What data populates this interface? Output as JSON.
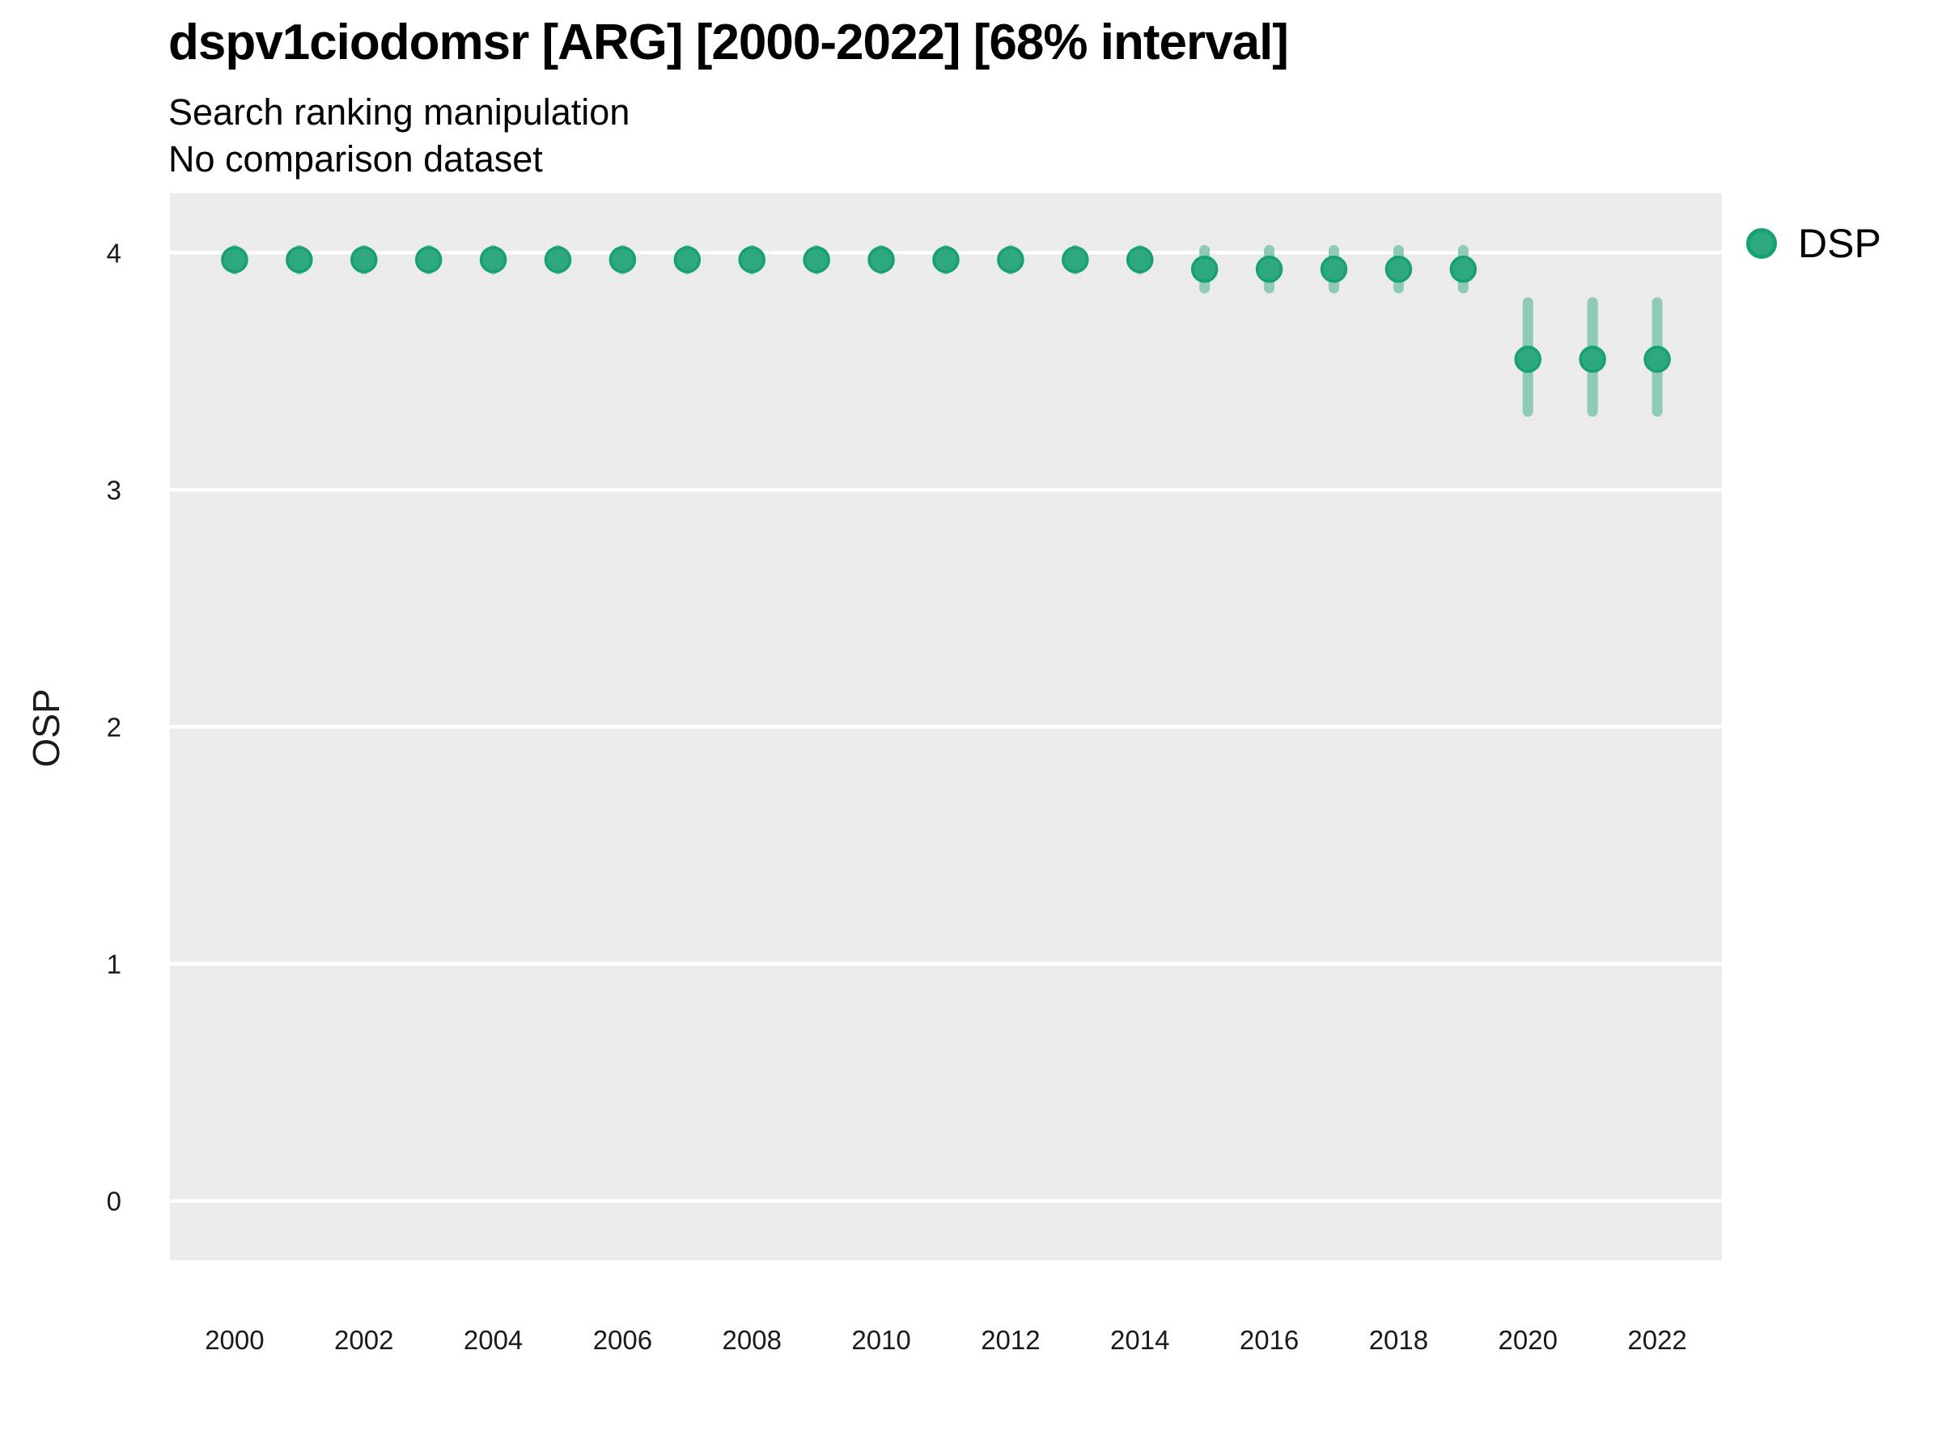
{
  "header": {
    "title": "dspv1ciodomsr [ARG] [2000-2022] [68% interval]",
    "subtitle": "Search ranking manipulation",
    "note": "No comparison dataset"
  },
  "legend": {
    "label": "DSP"
  },
  "colors": {
    "panel": "#ebebeb",
    "grid": "#ffffff",
    "point": "#2ea881",
    "point_stroke": "#17a077",
    "interval": "#8fcbb4",
    "tick_text": "#1a1a1a"
  },
  "chart_data": {
    "type": "scatter",
    "title": "dspv1ciodomsr [ARG] [2000-2022] [68% interval]",
    "subtitle": "Search ranking manipulation",
    "note": "No comparison dataset",
    "xlabel": "",
    "ylabel": "OSP",
    "legend_entries": [
      "DSP"
    ],
    "legend_position": "right",
    "grid": "horizontal-major-only",
    "xlim": [
      1999,
      2023
    ],
    "ylim": [
      -0.25,
      4.25
    ],
    "xticks": [
      2000,
      2002,
      2004,
      2006,
      2008,
      2010,
      2012,
      2014,
      2016,
      2018,
      2020,
      2022
    ],
    "yticks": [
      0,
      1,
      2,
      3,
      4
    ],
    "x": [
      2000,
      2001,
      2002,
      2003,
      2004,
      2005,
      2006,
      2007,
      2008,
      2009,
      2010,
      2011,
      2012,
      2013,
      2014,
      2015,
      2016,
      2017,
      2018,
      2019,
      2020,
      2021,
      2022
    ],
    "series": [
      {
        "name": "DSP",
        "values": [
          3.97,
          3.97,
          3.97,
          3.97,
          3.97,
          3.97,
          3.97,
          3.97,
          3.97,
          3.97,
          3.97,
          3.97,
          3.97,
          3.97,
          3.97,
          3.93,
          3.93,
          3.93,
          3.93,
          3.93,
          3.55,
          3.55,
          3.55
        ],
        "ci_low": [
          3.93,
          3.93,
          3.93,
          3.93,
          3.93,
          3.93,
          3.93,
          3.93,
          3.93,
          3.93,
          3.93,
          3.93,
          3.93,
          3.93,
          3.93,
          3.85,
          3.85,
          3.85,
          3.85,
          3.85,
          3.33,
          3.33,
          3.33
        ],
        "ci_high": [
          4.01,
          4.01,
          4.01,
          4.01,
          4.01,
          4.01,
          4.01,
          4.01,
          4.01,
          4.01,
          4.01,
          4.01,
          4.01,
          4.01,
          4.01,
          4.01,
          4.01,
          4.01,
          4.01,
          4.01,
          3.79,
          3.79,
          3.79
        ],
        "interval_label": "68% interval"
      }
    ]
  }
}
